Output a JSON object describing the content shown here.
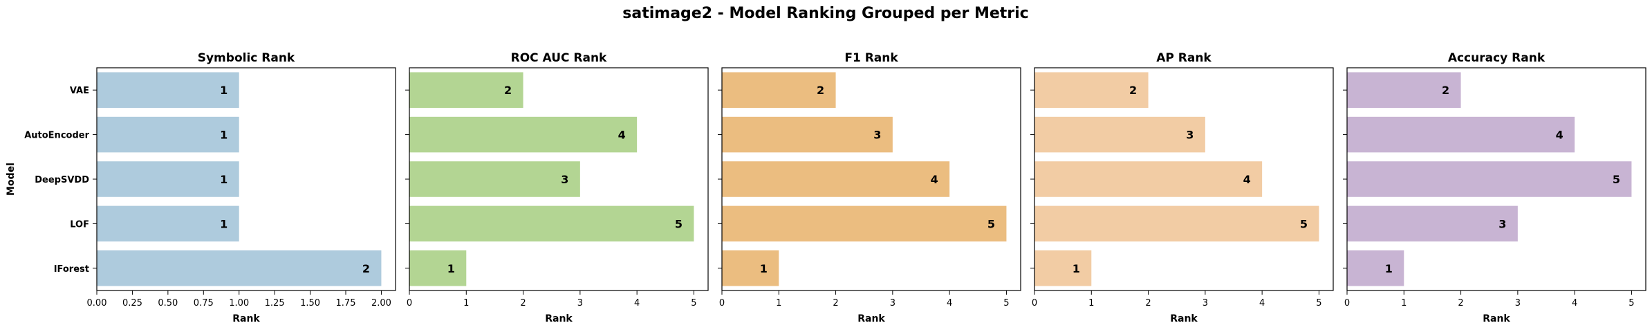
{
  "title": "satimage2 - Model Ranking Grouped per Metric",
  "chart_data": [
    {
      "type": "bar",
      "orientation": "horizontal",
      "title": "Symbolic Rank",
      "xlabel": "Rank",
      "ylabel": "Model",
      "categories": [
        "VAE",
        "AutoEncoder",
        "DeepSVDD",
        "LOF",
        "IForest"
      ],
      "values": [
        1,
        1,
        1,
        1,
        2
      ],
      "xlim": [
        0,
        2.1
      ],
      "xticks": [
        0,
        0.25,
        0.5,
        0.75,
        1,
        1.25,
        1.5,
        1.75,
        2
      ],
      "xtick_labels": [
        "0.00",
        "0.25",
        "0.50",
        "0.75",
        "1.00",
        "1.25",
        "1.50",
        "1.75",
        "2.00"
      ],
      "color": "#aecbdd"
    },
    {
      "type": "bar",
      "orientation": "horizontal",
      "title": "ROC AUC Rank",
      "xlabel": "Rank",
      "categories": [
        "VAE",
        "AutoEncoder",
        "DeepSVDD",
        "LOF",
        "IForest"
      ],
      "values": [
        2,
        4,
        3,
        5,
        1
      ],
      "xlim": [
        0,
        5.25
      ],
      "xticks": [
        0,
        1,
        2,
        3,
        4,
        5
      ],
      "xtick_labels": [
        "0",
        "1",
        "2",
        "3",
        "4",
        "5"
      ],
      "color": "#b3d593"
    },
    {
      "type": "bar",
      "orientation": "horizontal",
      "title": "F1 Rank",
      "xlabel": "Rank",
      "categories": [
        "VAE",
        "AutoEncoder",
        "DeepSVDD",
        "LOF",
        "IForest"
      ],
      "values": [
        2,
        3,
        4,
        5,
        1
      ],
      "xlim": [
        0,
        5.25
      ],
      "xticks": [
        0,
        1,
        2,
        3,
        4,
        5
      ],
      "xtick_labels": [
        "0",
        "1",
        "2",
        "3",
        "4",
        "5"
      ],
      "color": "#ebbd80"
    },
    {
      "type": "bar",
      "orientation": "horizontal",
      "title": "AP Rank",
      "xlabel": "Rank",
      "categories": [
        "VAE",
        "AutoEncoder",
        "DeepSVDD",
        "LOF",
        "IForest"
      ],
      "values": [
        2,
        3,
        4,
        5,
        1
      ],
      "xlim": [
        0,
        5.25
      ],
      "xticks": [
        0,
        1,
        2,
        3,
        4,
        5
      ],
      "xtick_labels": [
        "0",
        "1",
        "2",
        "3",
        "4",
        "5"
      ],
      "color": "#f2cca4"
    },
    {
      "type": "bar",
      "orientation": "horizontal",
      "title": "Accuracy Rank",
      "xlabel": "Rank",
      "categories": [
        "VAE",
        "AutoEncoder",
        "DeepSVDD",
        "LOF",
        "IForest"
      ],
      "values": [
        2,
        4,
        5,
        3,
        1
      ],
      "xlim": [
        0,
        5.25
      ],
      "xticks": [
        0,
        1,
        2,
        3,
        4,
        5
      ],
      "xtick_labels": [
        "0",
        "1",
        "2",
        "3",
        "4",
        "5"
      ],
      "color": "#c8b4d3"
    }
  ]
}
